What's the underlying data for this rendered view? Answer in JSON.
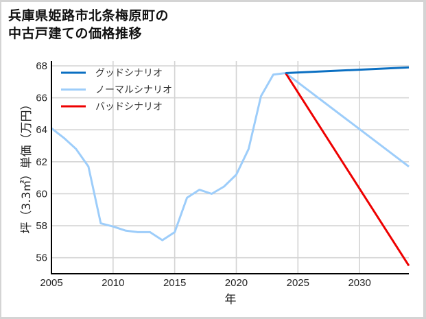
{
  "title_lines": [
    "兵庫県姫路市北条梅原町の",
    "中古戸建ての価格推移"
  ],
  "colors": {
    "good": "#0a6fc2",
    "normal": "#9dcdfa",
    "bad": "#ee0000",
    "grid": "#d3d3d3",
    "axis": "#000000"
  },
  "chart_data": {
    "type": "line",
    "title": "兵庫県姫路市北条梅原町の中古戸建ての価格推移",
    "xlabel": "年",
    "ylabel": "坪（3.3㎡）単価（万円）",
    "xlim": [
      2005,
      2034
    ],
    "ylim": [
      55.0,
      68.3
    ],
    "xticks": [
      2005,
      2010,
      2015,
      2020,
      2025,
      2030
    ],
    "yticks": [
      56,
      58,
      60,
      62,
      64,
      66,
      68
    ],
    "grid": true,
    "legend_position": "upper left",
    "series": [
      {
        "name": "グッドシナリオ",
        "color": "#0a6fc2",
        "x": [
          2024,
          2034
        ],
        "values": [
          67.55,
          67.9
        ]
      },
      {
        "name": "ノーマルシナリオ",
        "color": "#9dcdfa",
        "x": [
          2005,
          2006,
          2007,
          2008,
          2009,
          2010,
          2011,
          2012,
          2013,
          2014,
          2015,
          2016,
          2017,
          2018,
          2019,
          2020,
          2021,
          2022,
          2023,
          2024,
          2034
        ],
        "values": [
          64.1,
          63.5,
          62.8,
          61.7,
          58.15,
          57.95,
          57.7,
          57.6,
          57.6,
          57.1,
          57.6,
          59.75,
          60.25,
          60.0,
          60.45,
          61.2,
          62.8,
          66.1,
          67.45,
          67.55,
          61.7
        ]
      },
      {
        "name": "バッドシナリオ",
        "color": "#ee0000",
        "x": [
          2024,
          2034
        ],
        "values": [
          67.55,
          55.5
        ]
      }
    ]
  }
}
